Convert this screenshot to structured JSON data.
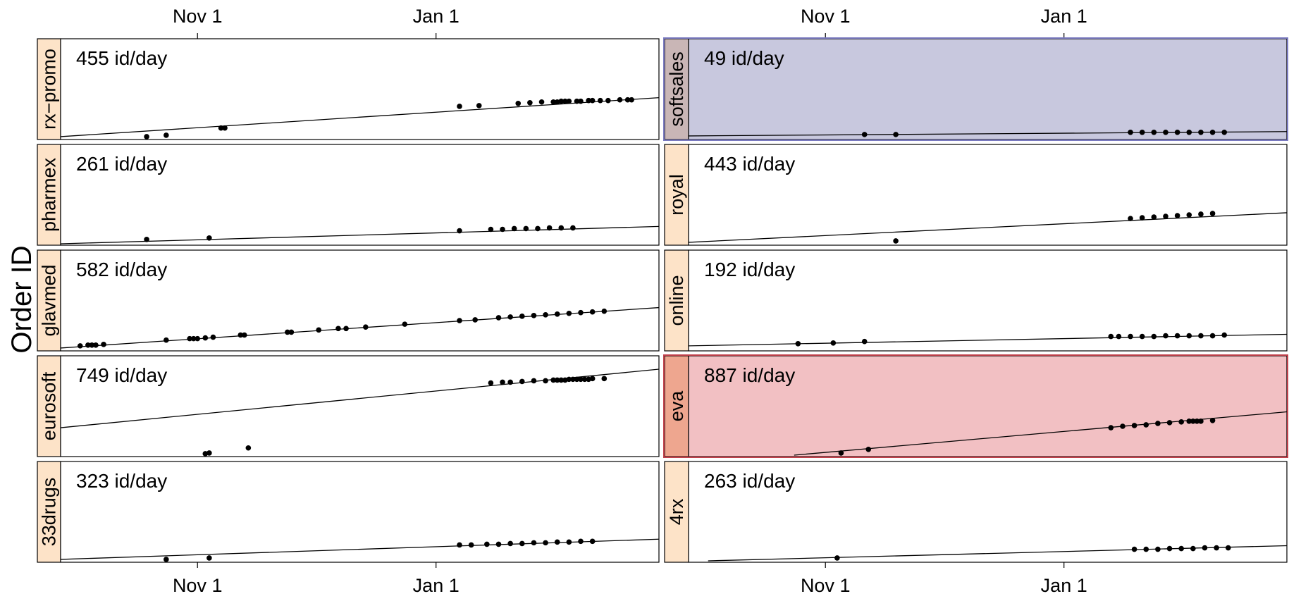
{
  "chart_data": {
    "type": "scatter",
    "ylabel": "Order ID",
    "x_ticks": [
      "Nov  1",
      "Jan  1"
    ],
    "panels": [
      {
        "name": "rx−promo",
        "annotation": "455 id/day",
        "highlight": null,
        "points": [
          [
            -13,
            2
          ],
          [
            -8,
            4
          ],
          [
            6,
            14
          ],
          [
            7,
            14
          ],
          [
            67,
            44
          ],
          [
            72,
            45
          ],
          [
            82,
            48
          ],
          [
            85,
            49
          ],
          [
            88,
            50
          ],
          [
            91,
            50
          ],
          [
            92,
            50
          ],
          [
            93,
            51
          ],
          [
            94,
            51
          ],
          [
            95,
            51
          ],
          [
            97,
            51
          ],
          [
            98,
            51
          ],
          [
            100,
            52
          ],
          [
            101,
            52
          ],
          [
            103,
            52
          ],
          [
            105,
            52
          ],
          [
            108,
            53
          ],
          [
            110,
            53
          ],
          [
            111,
            53
          ]
        ],
        "trend": [
          [
            -35,
            2
          ],
          [
            118,
            56
          ]
        ]
      },
      {
        "name": "softsales",
        "annotation": "49 id/day",
        "highlight": "blue",
        "points": [
          [
            10,
            5
          ],
          [
            18,
            5
          ],
          [
            78,
            8
          ],
          [
            81,
            8
          ],
          [
            84,
            8
          ],
          [
            87,
            8
          ],
          [
            90,
            8
          ],
          [
            93,
            8
          ],
          [
            96,
            8
          ],
          [
            99,
            8
          ],
          [
            102,
            8
          ]
        ],
        "trend": [
          [
            -35,
            3
          ],
          [
            118,
            9
          ]
        ]
      },
      {
        "name": "pharmex",
        "annotation": "261 id/day",
        "highlight": null,
        "points": [
          [
            -13,
            6
          ],
          [
            3,
            8
          ],
          [
            67,
            18
          ],
          [
            75,
            20
          ],
          [
            78,
            20
          ],
          [
            81,
            21
          ],
          [
            84,
            21
          ],
          [
            87,
            21
          ],
          [
            90,
            22
          ],
          [
            93,
            22
          ],
          [
            96,
            22
          ]
        ],
        "trend": [
          [
            -35,
            0
          ],
          [
            118,
            24
          ]
        ]
      },
      {
        "name": "royal",
        "annotation": "443 id/day",
        "highlight": null,
        "points": [
          [
            18,
            4
          ],
          [
            78,
            35
          ],
          [
            81,
            36
          ],
          [
            84,
            37
          ],
          [
            87,
            38
          ],
          [
            90,
            39
          ],
          [
            93,
            40
          ],
          [
            96,
            41
          ],
          [
            99,
            42
          ]
        ],
        "trend": [
          [
            -35,
            2
          ],
          [
            118,
            43
          ]
        ]
      },
      {
        "name": "glavmed",
        "annotation": "582 id/day",
        "highlight": null,
        "points": [
          [
            -30,
            5
          ],
          [
            -28,
            6
          ],
          [
            -27,
            6
          ],
          [
            -26,
            6
          ],
          [
            -24,
            7
          ],
          [
            -8,
            13
          ],
          [
            -2,
            15
          ],
          [
            -1,
            15
          ],
          [
            0,
            15
          ],
          [
            2,
            16
          ],
          [
            4,
            17
          ],
          [
            11,
            20
          ],
          [
            12,
            20
          ],
          [
            23,
            24
          ],
          [
            24,
            24
          ],
          [
            31,
            27
          ],
          [
            36,
            29
          ],
          [
            38,
            29
          ],
          [
            43,
            31
          ],
          [
            53,
            35
          ],
          [
            67,
            40
          ],
          [
            71,
            41
          ],
          [
            77,
            44
          ],
          [
            80,
            45
          ],
          [
            83,
            46
          ],
          [
            86,
            47
          ],
          [
            89,
            48
          ],
          [
            92,
            49
          ],
          [
            95,
            50
          ],
          [
            98,
            51
          ],
          [
            101,
            52
          ],
          [
            104,
            53
          ]
        ],
        "trend": [
          [
            -35,
            2
          ],
          [
            118,
            58
          ]
        ]
      },
      {
        "name": "online",
        "annotation": "192 id/day",
        "highlight": null,
        "points": [
          [
            -7,
            8
          ],
          [
            2,
            9
          ],
          [
            10,
            11
          ],
          [
            73,
            18
          ],
          [
            75,
            18
          ],
          [
            78,
            18
          ],
          [
            81,
            18
          ],
          [
            84,
            18
          ],
          [
            87,
            19
          ],
          [
            90,
            19
          ],
          [
            93,
            19
          ],
          [
            96,
            19
          ],
          [
            99,
            19
          ],
          [
            102,
            20
          ]
        ],
        "trend": [
          [
            -35,
            5
          ],
          [
            118,
            21
          ]
        ]
      },
      {
        "name": "eurosoft",
        "annotation": "749 id/day",
        "highlight": null,
        "points": [
          [
            2,
            2
          ],
          [
            3,
            3
          ],
          [
            13,
            10
          ],
          [
            75,
            100
          ],
          [
            78,
            101
          ],
          [
            80,
            101
          ],
          [
            83,
            102
          ],
          [
            86,
            103
          ],
          [
            89,
            103
          ],
          [
            91,
            104
          ],
          [
            92,
            104
          ],
          [
            93,
            104
          ],
          [
            94,
            104
          ],
          [
            95,
            105
          ],
          [
            96,
            105
          ],
          [
            97,
            105
          ],
          [
            98,
            105
          ],
          [
            99,
            105
          ],
          [
            100,
            105
          ],
          [
            101,
            106
          ],
          [
            104,
            106
          ]
        ],
        "trend": [
          [
            -35,
            38
          ],
          [
            118,
            119
          ]
        ]
      },
      {
        "name": "eva",
        "annotation": "887 id/day",
        "highlight": "red",
        "points": [
          [
            4,
            3
          ],
          [
            11,
            8
          ],
          [
            73,
            38
          ],
          [
            76,
            40
          ],
          [
            79,
            41
          ],
          [
            82,
            42
          ],
          [
            85,
            44
          ],
          [
            88,
            45
          ],
          [
            91,
            46
          ],
          [
            93,
            47
          ],
          [
            94,
            47
          ],
          [
            95,
            47
          ],
          [
            96,
            47
          ],
          [
            99,
            48
          ]
        ],
        "trend": [
          [
            -8,
            0
          ],
          [
            118,
            60
          ]
        ]
      },
      {
        "name": "33drugs",
        "annotation": "323 id/day",
        "highlight": null,
        "points": [
          [
            -8,
            2
          ],
          [
            3,
            4
          ],
          [
            67,
            22
          ],
          [
            70,
            22
          ],
          [
            74,
            23
          ],
          [
            77,
            23
          ],
          [
            80,
            24
          ],
          [
            83,
            24
          ],
          [
            86,
            25
          ],
          [
            89,
            25
          ],
          [
            92,
            26
          ],
          [
            95,
            26
          ],
          [
            98,
            27
          ],
          [
            101,
            27
          ]
        ],
        "trend": [
          [
            -35,
            2
          ],
          [
            118,
            30
          ]
        ]
      },
      {
        "name": "4rx",
        "annotation": "263 id/day",
        "highlight": null,
        "points": [
          [
            3,
            4
          ],
          [
            79,
            16
          ],
          [
            82,
            16
          ],
          [
            85,
            16
          ],
          [
            88,
            17
          ],
          [
            91,
            17
          ],
          [
            94,
            17
          ],
          [
            97,
            18
          ],
          [
            100,
            18
          ],
          [
            103,
            18
          ]
        ],
        "trend": [
          [
            -30,
            0
          ],
          [
            118,
            21
          ]
        ]
      }
    ]
  }
}
